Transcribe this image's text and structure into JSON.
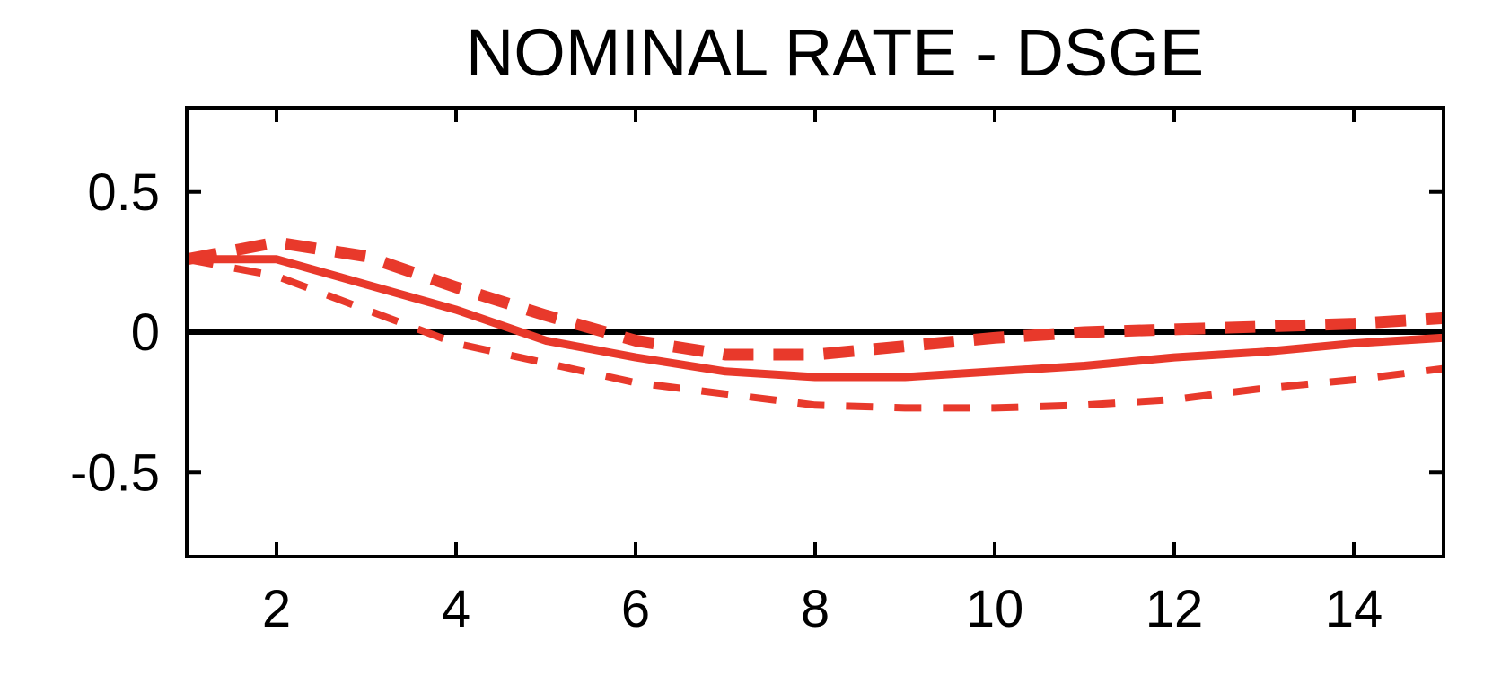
{
  "chart_data": {
    "type": "line",
    "title": "NOMINAL RATE - DSGE",
    "xlabel": "",
    "ylabel": "",
    "xlim": [
      1,
      15
    ],
    "ylim": [
      -0.8,
      0.8
    ],
    "x_ticks": [
      2,
      4,
      6,
      8,
      10,
      12,
      14
    ],
    "x_tick_labels": [
      "2",
      "4",
      "6",
      "8",
      "10",
      "12",
      "14"
    ],
    "y_ticks": [
      0.5,
      0,
      -0.5
    ],
    "y_tick_labels": [
      "0.5",
      "0",
      "-0.5"
    ],
    "grid": false,
    "legend": "none",
    "zero_line": 0,
    "x": [
      1,
      2,
      3,
      4,
      5,
      6,
      7,
      8,
      9,
      10,
      11,
      12,
      13,
      14,
      15
    ],
    "series": [
      {
        "style": "solid",
        "color": "#e8392b",
        "values": [
          0.26,
          0.26,
          0.17,
          0.08,
          -0.03,
          -0.09,
          -0.14,
          -0.16,
          -0.16,
          -0.14,
          -0.12,
          -0.09,
          -0.07,
          -0.04,
          -0.02
        ]
      },
      {
        "style": "dashed-upper",
        "color": "#e8392b",
        "values": [
          0.26,
          0.32,
          0.27,
          0.16,
          0.06,
          -0.03,
          -0.08,
          -0.08,
          -0.05,
          -0.02,
          0.0,
          0.01,
          0.02,
          0.03,
          0.05
        ]
      },
      {
        "style": "dashed-lower",
        "color": "#e8392b",
        "values": [
          0.26,
          0.2,
          0.08,
          -0.04,
          -0.11,
          -0.18,
          -0.22,
          -0.26,
          -0.27,
          -0.27,
          -0.26,
          -0.24,
          -0.2,
          -0.17,
          -0.13
        ]
      }
    ],
    "zero_line_color": "#000000",
    "axis_color": "#000000"
  }
}
